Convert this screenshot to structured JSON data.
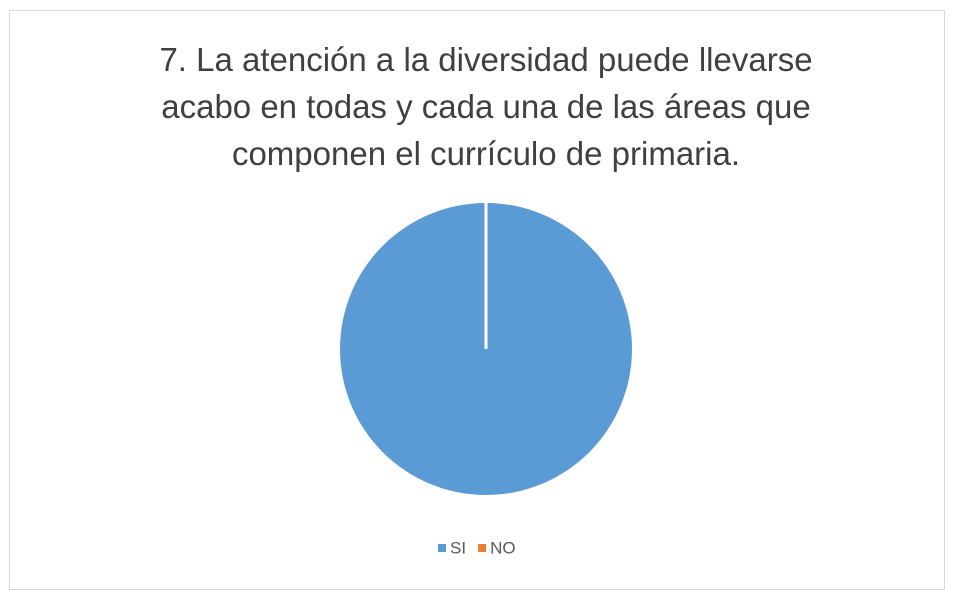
{
  "chart_data": {
    "type": "pie",
    "title": "7. La atención a la diversidad puede llevarse acabo en todas y cada una de las áreas que componen el currículo de primaria.",
    "categories": [
      "SI",
      "NO"
    ],
    "values": [
      100,
      0
    ],
    "colors": [
      "#5b9bd5",
      "#ed7d31"
    ],
    "legend": "bottom"
  }
}
